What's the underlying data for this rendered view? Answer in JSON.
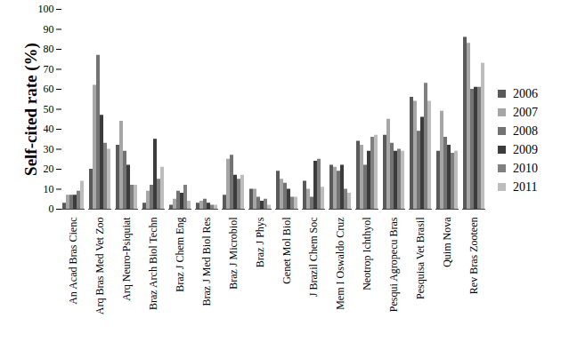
{
  "chart_data": {
    "type": "bar",
    "y_label": "Self-cited rate (%)",
    "categories": [
      "An Acad Bras Cienc",
      "Arq Bras Med Vet Zoo",
      "Arq Neuro-Psiquiat",
      "Braz Arch Biol Techn",
      "Braz J Chem Eng",
      "Braz J Med Biol Res",
      "Braz J Microbiol",
      "Braz J Phys",
      "Genet Mol Biol",
      "J Brazil Chem Soc",
      "Mem I Oswaldo Cruz",
      "Neotrop Ichthyol",
      "Pesqui Agropecu Bras",
      "Pesquisa Vet Brasil",
      "Quim Nova",
      "Rev Bras Zooteen"
    ],
    "series": [
      {
        "name": "2006",
        "color": "#5a5a5a",
        "values": [
          3,
          20,
          32,
          3,
          2,
          3,
          7,
          10,
          19,
          14,
          22,
          34,
          37,
          56,
          29,
          86
        ]
      },
      {
        "name": "2007",
        "color": "#a6a6a6",
        "values": [
          7,
          62,
          44,
          9,
          5,
          4,
          25,
          10,
          15,
          10,
          21,
          32,
          45,
          54,
          49,
          83
        ]
      },
      {
        "name": "2008",
        "color": "#737373",
        "values": [
          7,
          77,
          29,
          12,
          9,
          5,
          27,
          6,
          13,
          6,
          19,
          22,
          33,
          39,
          36,
          60
        ]
      },
      {
        "name": "2009",
        "color": "#3c3c3c",
        "values": [
          7,
          47,
          22,
          35,
          8,
          3,
          17,
          4,
          10,
          24,
          22,
          29,
          29,
          46,
          32,
          61
        ]
      },
      {
        "name": "2010",
        "color": "#808080",
        "values": [
          9,
          33,
          12,
          15,
          12,
          2,
          15,
          5,
          6,
          25,
          10,
          36,
          30,
          63,
          28,
          61
        ]
      },
      {
        "name": "2011",
        "color": "#bdbdbd",
        "values": [
          14,
          30,
          12,
          21,
          4,
          2,
          17,
          2,
          6,
          11,
          8,
          37,
          29,
          54,
          29,
          73
        ]
      }
    ],
    "ylim": [
      0,
      100
    ],
    "yticks": [
      0,
      10,
      20,
      30,
      40,
      50,
      60,
      70,
      80,
      90,
      100
    ],
    "grid": false,
    "legend": "right"
  }
}
